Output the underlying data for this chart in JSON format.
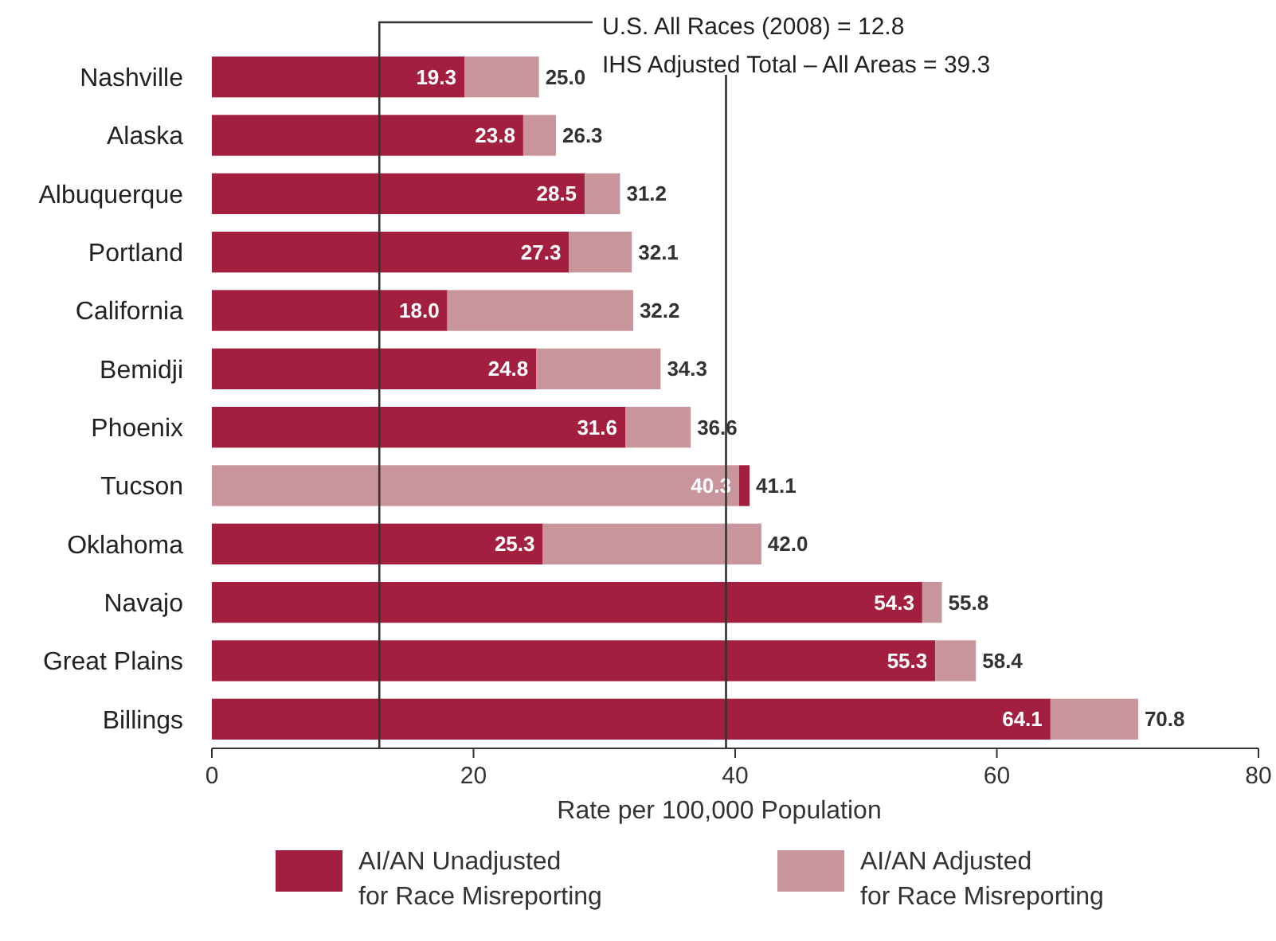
{
  "chart_data": {
    "type": "bar",
    "orientation": "horizontal",
    "stacked": true,
    "xlabel": "Rate per 100,000 Population",
    "categories": [
      "Nashville",
      "Alaska",
      "Albuquerque",
      "Portland",
      "California",
      "Bemidji",
      "Phoenix",
      "Tucson",
      "Oklahoma",
      "Navajo",
      "Great Plains",
      "Billings"
    ],
    "series": [
      {
        "name": "AI/AN Unadjusted for Race Misreporting",
        "color": "#a31f3f",
        "colors": [
          "#a31f3f",
          "#a31f3f",
          "#a31f3f",
          "#a31f3f",
          "#a31f3f",
          "#a31f3f",
          "#a31f3f",
          "#c9959c",
          "#a31f3f",
          "#a31f3f",
          "#a31f3f",
          "#a31f3f"
        ],
        "values": [
          19.3,
          23.8,
          28.5,
          27.3,
          18.0,
          24.8,
          31.6,
          40.3,
          25.3,
          54.3,
          55.3,
          64.1
        ],
        "value_labels": [
          "19.3",
          "23.8",
          "28.5",
          "27.3",
          "18.0",
          "24.8",
          "31.6",
          "40.3",
          "25.3",
          "54.3",
          "55.3",
          "64.1"
        ]
      },
      {
        "name": "AI/AN Adjusted for Race Misreporting",
        "color": "#c9959c",
        "colors": [
          "#c9959c",
          "#c9959c",
          "#c9959c",
          "#c9959c",
          "#c9959c",
          "#c9959c",
          "#c9959c",
          "#a31f3f",
          "#c9959c",
          "#c9959c",
          "#c9959c",
          "#c9959c"
        ],
        "values": [
          5.7,
          2.5,
          2.7,
          4.8,
          14.2,
          9.5,
          5.0,
          0.8,
          16.7,
          1.5,
          3.1,
          6.7
        ]
      }
    ],
    "totals": [
      "25.0",
      "26.3",
      "31.2",
      "32.1",
      "32.2",
      "34.3",
      "36.6",
      "41.1",
      "42.0",
      "55.8",
      "58.4",
      "70.8"
    ],
    "xlim": [
      0,
      80
    ],
    "xticks": [
      0,
      20,
      40,
      60,
      80
    ],
    "grid": false,
    "legend": "bottom",
    "ref_lines": [
      {
        "axis": "x",
        "value": 12.8,
        "label": "U.S. All Races (2008) = 12.8",
        "color": "#333333"
      },
      {
        "axis": "x",
        "value": 39.3,
        "label": "IHS Adjusted Total – All Areas = 39.3",
        "color": "#333333"
      }
    ]
  }
}
